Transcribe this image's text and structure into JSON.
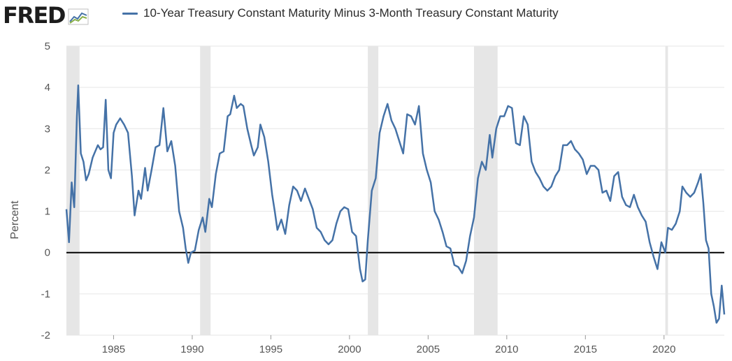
{
  "logo": {
    "text": "FRED",
    "icon": "fred-trend-icon"
  },
  "colors": {
    "series": "#4572a7",
    "recession": "#e6e6e6",
    "grid": "#e6e6e6",
    "zero_line": "#000000"
  },
  "chart_data": {
    "type": "line",
    "title": "",
    "xlabel": "",
    "ylabel": "Percent",
    "ylim": [
      -2,
      5
    ],
    "xlim": [
      "1982-01",
      "2023-11"
    ],
    "yticks": [
      -2,
      -1,
      0,
      1,
      2,
      3,
      4,
      5
    ],
    "xticks": [
      "1985",
      "1990",
      "1995",
      "2000",
      "2005",
      "2010",
      "2015",
      "2020"
    ],
    "grid": true,
    "legend_position": "top",
    "reference_lines": [
      0
    ],
    "recessions": [
      [
        "1982-01",
        "1982-11"
      ],
      [
        "1990-07",
        "1991-03"
      ],
      [
        "2001-03",
        "2001-11"
      ],
      [
        "2007-12",
        "2009-06"
      ],
      [
        "2020-02",
        "2020-04"
      ]
    ],
    "series": [
      {
        "name": "10-Year Treasury Constant Maturity Minus 3-Month Treasury Constant Maturity",
        "points": [
          [
            "1982-01",
            1.05
          ],
          [
            "1982-03",
            0.25
          ],
          [
            "1982-05",
            1.7
          ],
          [
            "1982-07",
            1.1
          ],
          [
            "1982-09",
            3.3
          ],
          [
            "1982-10",
            4.05
          ],
          [
            "1982-12",
            2.4
          ],
          [
            "1983-02",
            2.2
          ],
          [
            "1983-04",
            1.75
          ],
          [
            "1983-06",
            1.9
          ],
          [
            "1983-09",
            2.3
          ],
          [
            "1983-11",
            2.45
          ],
          [
            "1984-01",
            2.6
          ],
          [
            "1984-03",
            2.5
          ],
          [
            "1984-05",
            2.55
          ],
          [
            "1984-07",
            3.7
          ],
          [
            "1984-09",
            2.0
          ],
          [
            "1984-11",
            1.8
          ],
          [
            "1985-01",
            2.9
          ],
          [
            "1985-03",
            3.1
          ],
          [
            "1985-06",
            3.25
          ],
          [
            "1985-09",
            3.1
          ],
          [
            "1985-12",
            2.9
          ],
          [
            "1986-03",
            1.85
          ],
          [
            "1986-05",
            0.9
          ],
          [
            "1986-08",
            1.5
          ],
          [
            "1986-10",
            1.3
          ],
          [
            "1987-01",
            2.05
          ],
          [
            "1987-03",
            1.5
          ],
          [
            "1987-06",
            2.0
          ],
          [
            "1987-09",
            2.55
          ],
          [
            "1987-12",
            2.6
          ],
          [
            "1988-03",
            3.5
          ],
          [
            "1988-06",
            2.45
          ],
          [
            "1988-09",
            2.7
          ],
          [
            "1988-12",
            2.1
          ],
          [
            "1989-03",
            1.0
          ],
          [
            "1989-06",
            0.6
          ],
          [
            "1989-08",
            0.1
          ],
          [
            "1989-10",
            -0.25
          ],
          [
            "1989-12",
            0.0
          ],
          [
            "1990-03",
            0.05
          ],
          [
            "1990-06",
            0.55
          ],
          [
            "1990-09",
            0.85
          ],
          [
            "1990-11",
            0.5
          ],
          [
            "1991-02",
            1.3
          ],
          [
            "1991-04",
            1.1
          ],
          [
            "1991-07",
            1.9
          ],
          [
            "1991-10",
            2.4
          ],
          [
            "1992-01",
            2.45
          ],
          [
            "1992-04",
            3.3
          ],
          [
            "1992-06",
            3.35
          ],
          [
            "1992-09",
            3.8
          ],
          [
            "1992-11",
            3.5
          ],
          [
            "1993-02",
            3.6
          ],
          [
            "1993-04",
            3.55
          ],
          [
            "1993-07",
            3.0
          ],
          [
            "1993-10",
            2.6
          ],
          [
            "1993-12",
            2.35
          ],
          [
            "1994-03",
            2.55
          ],
          [
            "1994-05",
            3.1
          ],
          [
            "1994-08",
            2.8
          ],
          [
            "1994-11",
            2.2
          ],
          [
            "1995-02",
            1.4
          ],
          [
            "1995-04",
            1.0
          ],
          [
            "1995-06",
            0.55
          ],
          [
            "1995-09",
            0.8
          ],
          [
            "1995-12",
            0.45
          ],
          [
            "1996-03",
            1.15
          ],
          [
            "1996-06",
            1.6
          ],
          [
            "1996-09",
            1.5
          ],
          [
            "1996-12",
            1.25
          ],
          [
            "1997-03",
            1.55
          ],
          [
            "1997-06",
            1.3
          ],
          [
            "1997-09",
            1.05
          ],
          [
            "1997-12",
            0.6
          ],
          [
            "1998-03",
            0.5
          ],
          [
            "1998-06",
            0.3
          ],
          [
            "1998-09",
            0.2
          ],
          [
            "1998-12",
            0.3
          ],
          [
            "1999-03",
            0.7
          ],
          [
            "1999-06",
            1.0
          ],
          [
            "1999-09",
            1.1
          ],
          [
            "1999-12",
            1.05
          ],
          [
            "2000-03",
            0.5
          ],
          [
            "2000-06",
            0.4
          ],
          [
            "2000-09",
            -0.4
          ],
          [
            "2000-11",
            -0.7
          ],
          [
            "2001-01",
            -0.65
          ],
          [
            "2001-03",
            0.3
          ],
          [
            "2001-06",
            1.5
          ],
          [
            "2001-09",
            1.8
          ],
          [
            "2001-12",
            2.9
          ],
          [
            "2002-03",
            3.3
          ],
          [
            "2002-06",
            3.6
          ],
          [
            "2002-09",
            3.2
          ],
          [
            "2002-12",
            3.0
          ],
          [
            "2003-03",
            2.7
          ],
          [
            "2003-06",
            2.4
          ],
          [
            "2003-09",
            3.35
          ],
          [
            "2003-12",
            3.3
          ],
          [
            "2004-03",
            3.1
          ],
          [
            "2004-06",
            3.55
          ],
          [
            "2004-09",
            2.4
          ],
          [
            "2004-12",
            2.0
          ],
          [
            "2005-03",
            1.7
          ],
          [
            "2005-06",
            1.0
          ],
          [
            "2005-09",
            0.8
          ],
          [
            "2005-12",
            0.5
          ],
          [
            "2006-03",
            0.15
          ],
          [
            "2006-06",
            0.1
          ],
          [
            "2006-09",
            -0.3
          ],
          [
            "2006-12",
            -0.35
          ],
          [
            "2007-03",
            -0.5
          ],
          [
            "2007-06",
            -0.2
          ],
          [
            "2007-09",
            0.4
          ],
          [
            "2007-12",
            0.85
          ],
          [
            "2008-03",
            1.8
          ],
          [
            "2008-06",
            2.2
          ],
          [
            "2008-09",
            2.0
          ],
          [
            "2008-12",
            2.85
          ],
          [
            "2009-02",
            2.3
          ],
          [
            "2009-05",
            3.0
          ],
          [
            "2009-08",
            3.3
          ],
          [
            "2009-11",
            3.3
          ],
          [
            "2010-02",
            3.55
          ],
          [
            "2010-05",
            3.5
          ],
          [
            "2010-08",
            2.65
          ],
          [
            "2010-11",
            2.6
          ],
          [
            "2011-02",
            3.3
          ],
          [
            "2011-05",
            3.1
          ],
          [
            "2011-08",
            2.2
          ],
          [
            "2011-11",
            1.95
          ],
          [
            "2012-02",
            1.8
          ],
          [
            "2012-05",
            1.6
          ],
          [
            "2012-08",
            1.5
          ],
          [
            "2012-11",
            1.6
          ],
          [
            "2013-02",
            1.85
          ],
          [
            "2013-05",
            2.0
          ],
          [
            "2013-08",
            2.6
          ],
          [
            "2013-11",
            2.6
          ],
          [
            "2014-02",
            2.7
          ],
          [
            "2014-05",
            2.5
          ],
          [
            "2014-08",
            2.4
          ],
          [
            "2014-11",
            2.25
          ],
          [
            "2015-02",
            1.9
          ],
          [
            "2015-05",
            2.1
          ],
          [
            "2015-08",
            2.1
          ],
          [
            "2015-11",
            2.0
          ],
          [
            "2016-02",
            1.45
          ],
          [
            "2016-05",
            1.5
          ],
          [
            "2016-08",
            1.25
          ],
          [
            "2016-11",
            1.85
          ],
          [
            "2017-02",
            1.95
          ],
          [
            "2017-05",
            1.35
          ],
          [
            "2017-08",
            1.15
          ],
          [
            "2017-11",
            1.1
          ],
          [
            "2018-02",
            1.4
          ],
          [
            "2018-05",
            1.1
          ],
          [
            "2018-08",
            0.9
          ],
          [
            "2018-11",
            0.75
          ],
          [
            "2019-02",
            0.25
          ],
          [
            "2019-05",
            -0.1
          ],
          [
            "2019-08",
            -0.4
          ],
          [
            "2019-11",
            0.25
          ],
          [
            "2020-02",
            0.0
          ],
          [
            "2020-04",
            0.6
          ],
          [
            "2020-07",
            0.55
          ],
          [
            "2020-10",
            0.7
          ],
          [
            "2021-01",
            1.0
          ],
          [
            "2021-03",
            1.6
          ],
          [
            "2021-06",
            1.45
          ],
          [
            "2021-09",
            1.35
          ],
          [
            "2021-12",
            1.45
          ],
          [
            "2022-03",
            1.7
          ],
          [
            "2022-05",
            1.9
          ],
          [
            "2022-07",
            1.2
          ],
          [
            "2022-09",
            0.3
          ],
          [
            "2022-11",
            0.1
          ],
          [
            "2023-01",
            -1.0
          ],
          [
            "2023-03",
            -1.3
          ],
          [
            "2023-05",
            -1.7
          ],
          [
            "2023-07",
            -1.6
          ],
          [
            "2023-09",
            -0.8
          ],
          [
            "2023-11",
            -1.5
          ]
        ]
      }
    ]
  }
}
